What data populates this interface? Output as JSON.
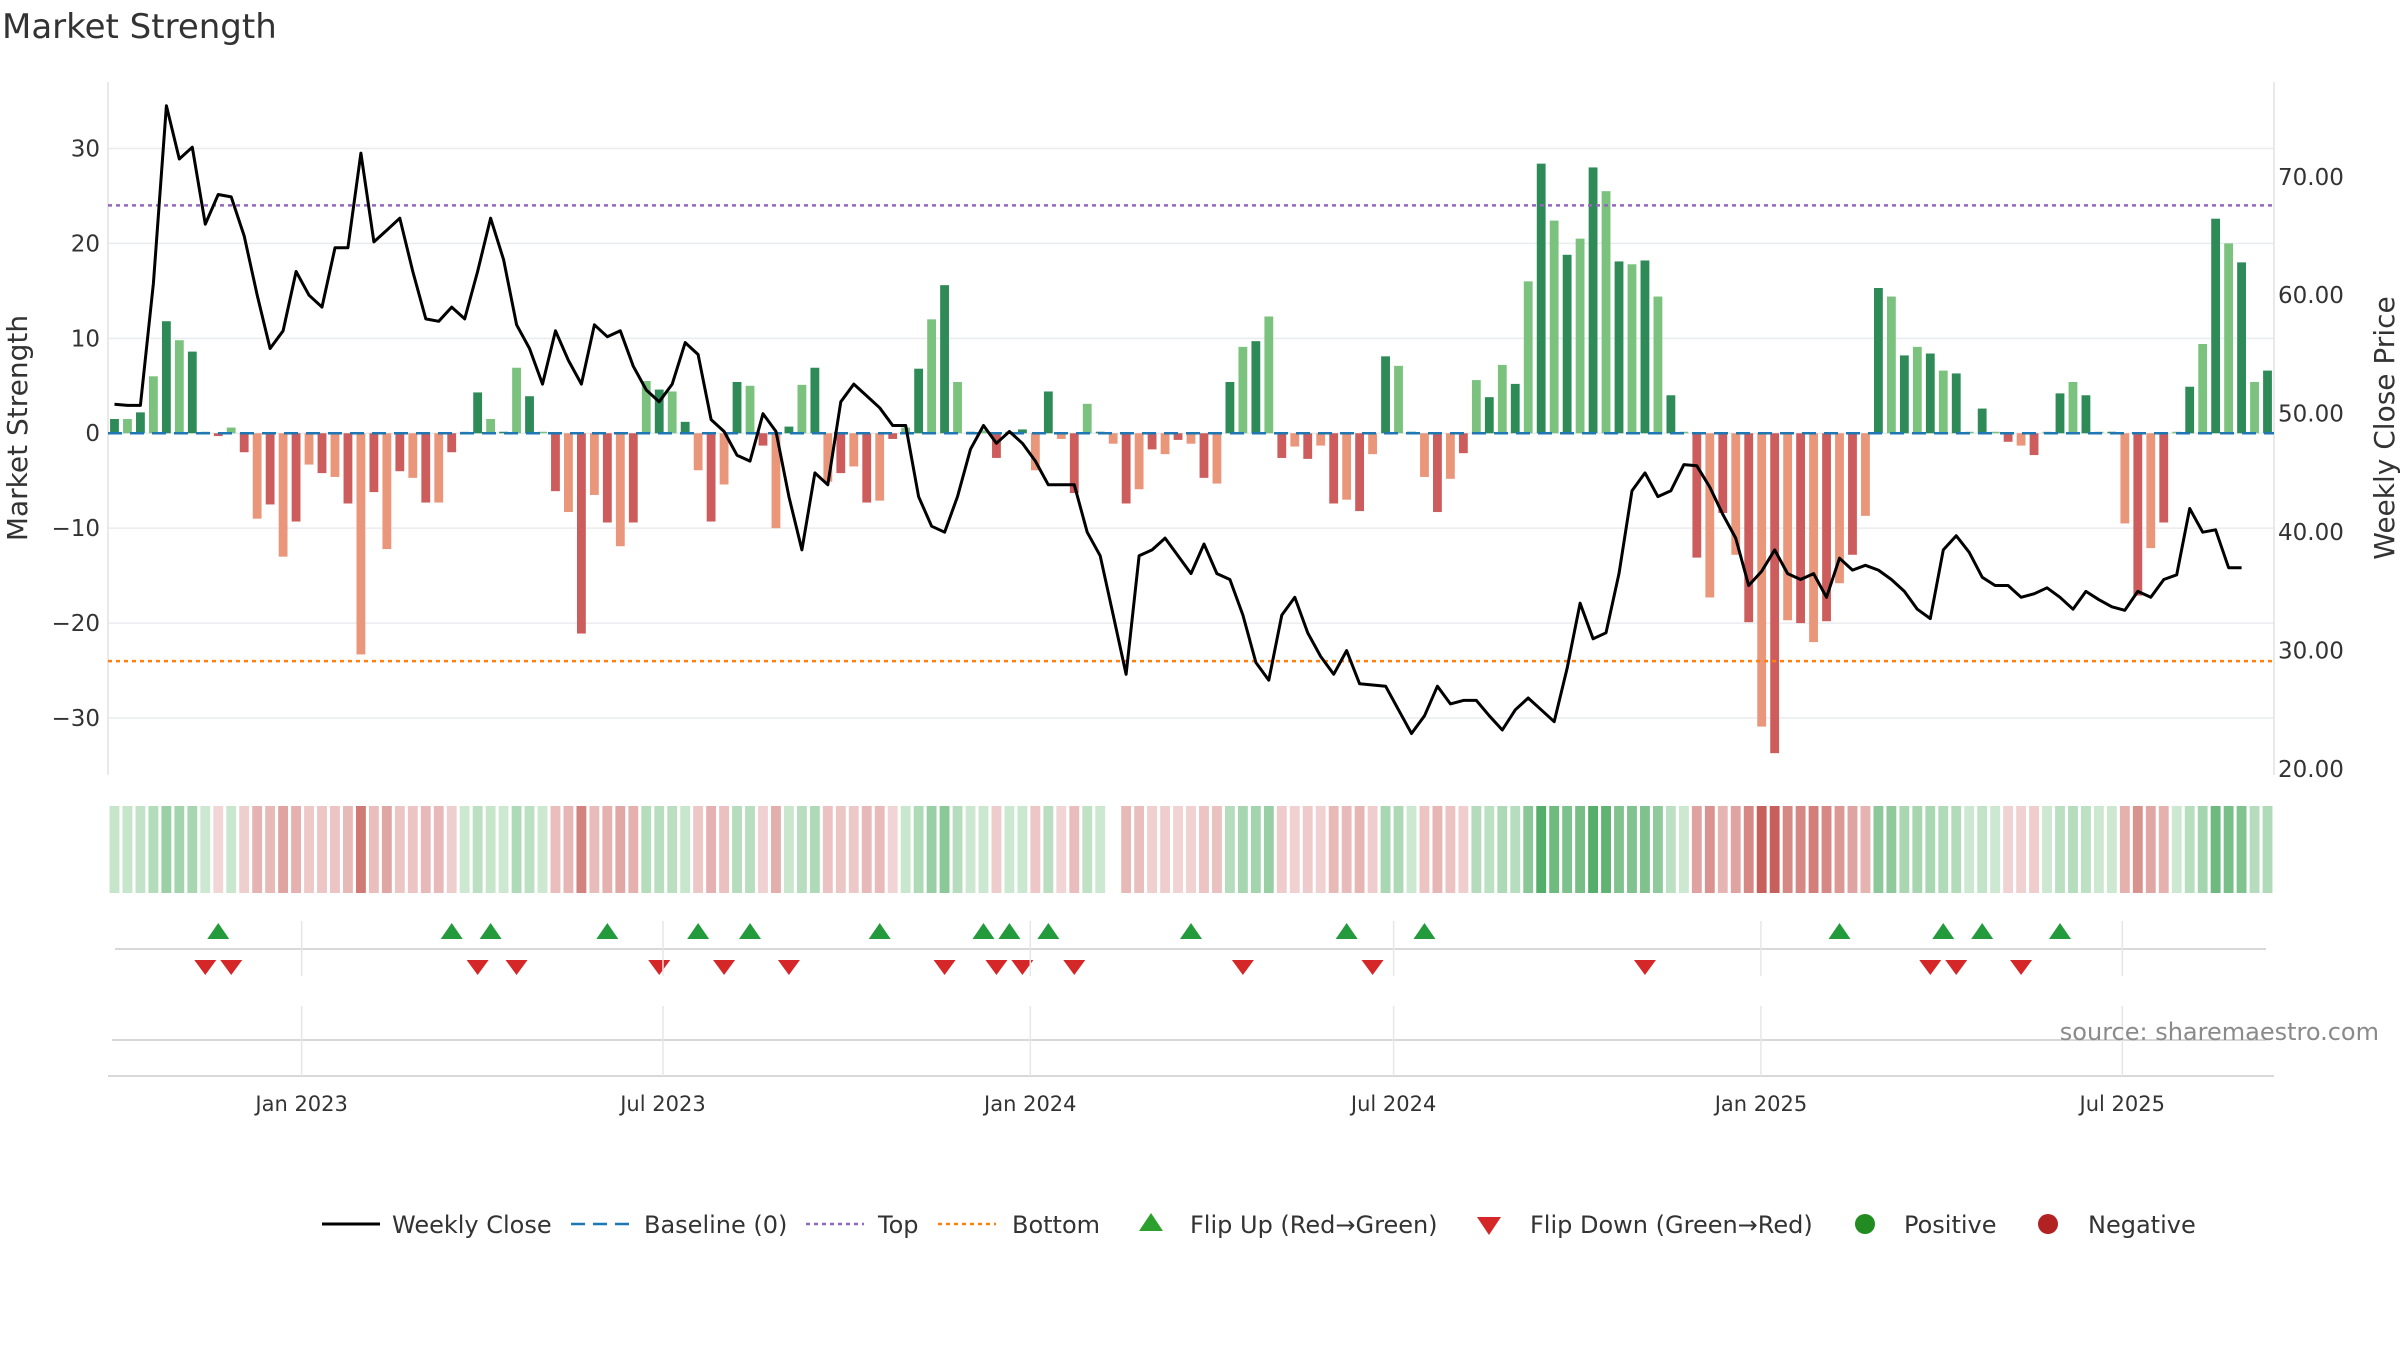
{
  "chart_data": {
    "type": "bar",
    "title": "Market Strength",
    "ylabel_left": "Market Strength",
    "ylabel_right": "Weekly Close Price",
    "source": "source: sharemaestro.com",
    "left_axis": {
      "ylim": [
        -36,
        37
      ],
      "ticks": [
        30,
        20,
        10,
        0,
        -10,
        -20,
        -30
      ],
      "tick_labels": [
        "30",
        "20",
        "10",
        "0",
        "−10",
        "−20",
        "−30"
      ]
    },
    "right_axis": {
      "ylim": [
        19.5,
        78
      ],
      "ticks": [
        70,
        60,
        50,
        40,
        30,
        20
      ],
      "tick_labels": [
        "70.00",
        "60.00",
        "50.00",
        "40.00",
        "30.00",
        "20.00"
      ]
    },
    "top_line": 24,
    "bottom_line": -24,
    "baseline": 0,
    "grid": true,
    "x_range": [
      "2022-09-26",
      "2025-09-15"
    ],
    "date_ticks": [
      {
        "date": "2023-01-01",
        "label": "Jan 2023"
      },
      {
        "date": "2023-07-01",
        "label": "Jul 2023"
      },
      {
        "date": "2024-01-01",
        "label": "Jan 2024"
      },
      {
        "date": "2024-07-01",
        "label": "Jul 2024"
      },
      {
        "date": "2025-01-01",
        "label": "Jan 2025"
      },
      {
        "date": "2025-07-01",
        "label": "Jul 2025"
      }
    ],
    "series": [
      {
        "name": "Weekly Close",
        "kind": "line",
        "color": "#000000",
        "values": [
          50.8,
          50.7,
          50.7,
          61,
          76,
          71.5,
          72.5,
          66,
          68.5,
          68.3,
          65,
          60,
          55.5,
          57,
          62,
          60,
          59,
          64,
          64,
          72,
          64.5,
          65.5,
          66.5,
          62,
          58,
          57.8,
          59,
          58,
          62,
          66.5,
          63,
          57.5,
          55.5,
          52.5,
          57,
          54.5,
          52.5,
          57.5,
          56.5,
          57,
          54,
          52,
          51,
          52.5,
          56,
          55,
          49.5,
          48.5,
          46.5,
          46,
          50,
          48.5,
          43,
          38.5,
          45,
          44,
          51,
          52.5,
          51.5,
          50.5,
          49,
          49,
          43,
          40.5,
          40,
          43,
          47,
          49,
          47.5,
          48.5,
          47.5,
          46,
          44,
          44,
          44,
          40,
          38,
          33,
          28,
          38,
          38.5,
          39.5,
          38,
          36.5,
          39,
          36.5,
          36,
          33,
          29,
          27.5,
          33,
          34.5,
          31.5,
          29.5,
          28,
          30,
          27.2,
          27.1,
          27,
          25,
          23,
          24.5,
          27,
          25.5,
          25.8,
          25.8,
          24.5,
          23.3,
          25,
          26,
          25,
          24,
          28.5,
          34,
          31,
          31.5,
          36.5,
          43.5,
          45,
          43,
          43.5,
          45.7,
          45.6,
          43.8,
          41.5,
          39.5,
          35.5,
          36.7,
          38.5,
          36.5,
          36,
          36.5,
          34.5,
          37.8,
          36.8,
          37.2,
          36.8,
          36,
          35,
          33.5,
          32.7,
          38.5,
          39.7,
          38.3,
          36.2,
          35.5,
          35.5,
          34.5,
          34.8,
          35.3,
          34.5,
          33.5,
          35,
          34.3,
          33.7,
          33.4,
          35,
          34.5,
          36,
          36.4,
          42,
          40,
          40.2,
          37,
          37
        ]
      },
      {
        "name": "Market Strength",
        "kind": "bar",
        "values": [
          1.5,
          1.5,
          2.2,
          6,
          11.8,
          9.8,
          8.6,
          0,
          -0.3,
          0.6,
          -2,
          -9,
          -7.5,
          -13,
          -9.3,
          -3.3,
          -4.2,
          -4.6,
          -7.4,
          -23.3,
          -6.2,
          -12.2,
          -4,
          -4.7,
          -7.3,
          -7.3,
          -2,
          0,
          4.3,
          1.5,
          0,
          6.9,
          3.9,
          0,
          -6.1,
          -8.3,
          -21.1,
          -6.5,
          -9.4,
          -11.9,
          -9.4,
          5.5,
          4.6,
          4.4,
          1.2,
          -3.9,
          -9.3,
          -5.4,
          5.4,
          5,
          -1.3,
          -10,
          0.7,
          5.1,
          6.9,
          -5.1,
          -4.2,
          -3.5,
          -7.3,
          -7.1,
          -0.6,
          0.6,
          6.8,
          12,
          15.6,
          5.4,
          0,
          0.3,
          -2.6,
          0,
          0.4,
          -3.9,
          4.4,
          -0.6,
          -6.3,
          3.1,
          0,
          -1.1,
          -7.4,
          -5.9,
          -1.7,
          -2.2,
          -0.7,
          -1.1,
          -4.7,
          -5.3,
          5.4,
          9.1,
          9.7,
          12.3,
          -2.6,
          -1.4,
          -2.7,
          -1.3,
          -7.4,
          -7,
          -8.2,
          -2.2,
          8.1,
          7.1,
          0,
          -4.6,
          -8.3,
          -4.8,
          -2.1,
          5.6,
          3.8,
          7.2,
          5.2,
          16,
          28.4,
          22.4,
          18.8,
          20.5,
          28,
          25.5,
          18.1,
          17.8,
          18.2,
          14.4,
          4,
          0,
          -13.1,
          -17.3,
          -8.4,
          -12.8,
          -19.9,
          -30.9,
          -33.7,
          -19.7,
          -20,
          -22,
          -19.8,
          -15.8,
          -12.8,
          -8.7,
          15.3,
          14.4,
          8.2,
          9.1,
          8.4,
          6.6,
          6.3,
          0,
          2.6,
          0,
          -0.9,
          -1.3,
          -2.3,
          0,
          4.2,
          5.4,
          4,
          0,
          0,
          -9.5,
          -17.1,
          -12.1,
          -9.4,
          0,
          4.9,
          9.4,
          22.6,
          20,
          18,
          5.4,
          6.6
        ]
      },
      {
        "name": "Baseline (0)",
        "kind": "line",
        "color": "#1f77b4"
      },
      {
        "name": "Top",
        "kind": "line",
        "color": "#9467bd"
      },
      {
        "name": "Bottom",
        "kind": "line",
        "color": "#ff7f0e"
      }
    ],
    "flip_up_weeks": [
      8,
      26,
      29,
      38,
      45,
      49,
      59,
      67,
      69,
      72,
      83,
      95,
      101,
      133,
      141,
      144,
      150
    ],
    "flip_down_weeks": [
      7,
      9,
      28,
      31,
      42,
      47,
      52,
      64,
      68,
      70,
      74,
      87,
      97,
      118,
      140,
      142,
      147
    ],
    "legend": {
      "placement": "bottom",
      "items": [
        {
          "label": "Weekly Close",
          "marker": "line",
          "color": "#000000"
        },
        {
          "label": "Baseline (0)",
          "marker": "dash",
          "color": "#1f77b4"
        },
        {
          "label": "Top",
          "marker": "dot",
          "color": "#9467bd"
        },
        {
          "label": "Bottom",
          "marker": "dot",
          "color": "#ff7f0e"
        },
        {
          "label": "Flip Up (Red→Green)",
          "marker": "triangle-up",
          "color": "#2ca02c"
        },
        {
          "label": "Flip Down (Green→Red)",
          "marker": "triangle-down",
          "color": "#d62728"
        },
        {
          "label": "Positive",
          "marker": "circle",
          "color": "#228b22"
        },
        {
          "label": "Negative",
          "marker": "circle",
          "color": "#b22222"
        }
      ]
    }
  }
}
